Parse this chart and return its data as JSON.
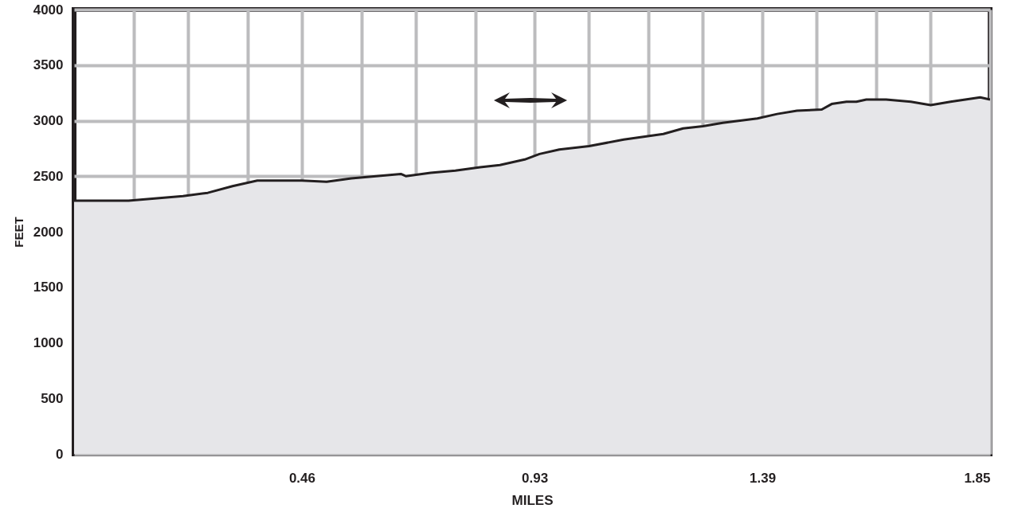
{
  "chart_data": {
    "type": "area",
    "xlabel": "MILES",
    "ylabel": "FEET",
    "color": "#e6e6e9",
    "grid": true,
    "x": [
      0,
      0.11,
      0.22,
      0.27,
      0.32,
      0.37,
      0.41,
      0.46,
      0.51,
      0.56,
      0.61,
      0.66,
      0.67,
      0.72,
      0.77,
      0.82,
      0.86,
      0.91,
      0.94,
      0.98,
      1.04,
      1.11,
      1.19,
      1.23,
      1.27,
      1.31,
      1.38,
      1.42,
      1.46,
      1.51,
      1.53,
      1.56,
      1.58,
      1.6,
      1.64,
      1.69,
      1.73,
      1.77,
      1.83,
      1.85
    ],
    "values": [
      2280,
      2280,
      2320,
      2350,
      2410,
      2460,
      2460,
      2460,
      2450,
      2480,
      2500,
      2520,
      2500,
      2530,
      2550,
      2580,
      2600,
      2650,
      2700,
      2740,
      2770,
      2830,
      2880,
      2930,
      2950,
      2980,
      3020,
      3060,
      3090,
      3100,
      3150,
      3170,
      3170,
      3190,
      3190,
      3170,
      3140,
      3170,
      3210,
      3190
    ],
    "xlim": [
      0,
      1.85
    ],
    "ylim": [
      0,
      4000
    ],
    "xticks": [
      {
        "value": 0.12,
        "label": null
      },
      {
        "value": 0.23,
        "label": null
      },
      {
        "value": 0.35,
        "label": null
      },
      0.46,
      {
        "value": 0.58,
        "label": null
      },
      {
        "value": 0.69,
        "label": null
      },
      {
        "value": 0.81,
        "label": null
      },
      0.93,
      {
        "value": 1.04,
        "label": null
      },
      {
        "value": 1.16,
        "label": null
      },
      {
        "value": 1.27,
        "label": null
      },
      1.39,
      {
        "value": 1.5,
        "label": null
      },
      {
        "value": 1.62,
        "label": null
      },
      {
        "value": 1.73,
        "label": null
      },
      1.85
    ],
    "yticks": [
      0,
      500,
      1000,
      1500,
      2000,
      2500,
      3000,
      3500,
      4000
    ]
  }
}
